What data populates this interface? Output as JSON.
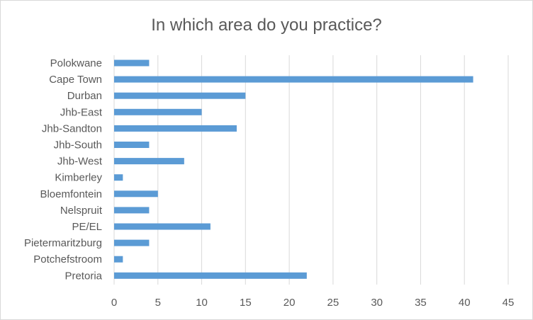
{
  "chart_data": {
    "type": "bar",
    "orientation": "horizontal",
    "title": "In which area do you practice?",
    "categories": [
      "Polokwane",
      "Cape Town",
      "Durban",
      "Jhb-East",
      "Jhb-Sandton",
      "Jhb-South",
      "Jhb-West",
      "Kimberley",
      "Bloemfontein",
      "Nelspruit",
      "PE/EL",
      "Pietermaritzburg",
      "Potchefstroom",
      "Pretoria"
    ],
    "values": [
      4,
      41,
      15,
      10,
      14,
      4,
      8,
      1,
      5,
      4,
      11,
      4,
      1,
      22
    ],
    "xlim": [
      0,
      45
    ],
    "xticks": [
      0,
      5,
      10,
      15,
      20,
      25,
      30,
      35,
      40,
      45
    ],
    "grid": "vertical",
    "bar_color": "#5b9bd5"
  }
}
